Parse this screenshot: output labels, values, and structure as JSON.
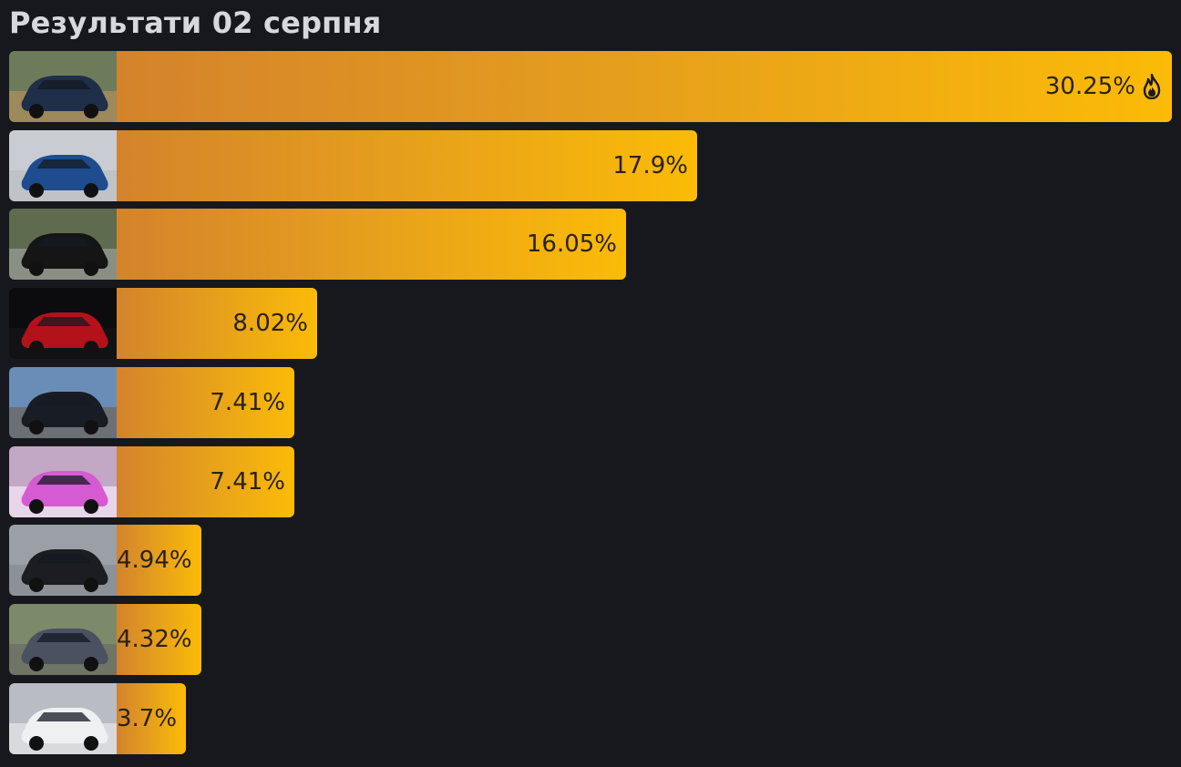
{
  "header": {
    "title": "Результати 02 серпня"
  },
  "chart_data": {
    "type": "bar",
    "orientation": "horizontal",
    "title": "Результати 02 серпня",
    "unit": "%",
    "xlim": [
      0,
      30.25
    ],
    "grid": false,
    "categories": [
      "",
      "",
      "",
      "",
      "",
      "",
      "",
      "",
      ""
    ],
    "values": [
      30.25,
      17.9,
      16.05,
      8.02,
      7.41,
      7.41,
      4.94,
      4.32,
      3.7
    ],
    "data_labels": [
      "30.25%",
      "17.9%",
      "16.05%",
      "8.02%",
      "7.41%",
      "7.41%",
      "4.94%",
      "4.32%",
      "3.7%"
    ],
    "leader_icon": "fire-icon",
    "thumbnails": [
      {
        "icon": "dark-hatchback-photo",
        "color": "#1f2f4a"
      },
      {
        "icon": "blue-suv-photo",
        "color": "#1e4c8e"
      },
      {
        "icon": "black-suv-photo",
        "color": "#151515"
      },
      {
        "icon": "car-rear-lights-photo",
        "color": "#b3121a"
      },
      {
        "icon": "black-wagon-photo",
        "color": "#181c24"
      },
      {
        "icon": "pink-car-photo",
        "color": "#d65bd2"
      },
      {
        "icon": "black-minivan-photo",
        "color": "#1b1d22"
      },
      {
        "icon": "grey-sedan-photo",
        "color": "#4a5160"
      },
      {
        "icon": "white-wagon-photo",
        "color": "#eef0f2"
      }
    ],
    "colors": {
      "bar_start": "#d4832b",
      "bar_end": "#fbbb07",
      "background": "#17181e"
    }
  }
}
